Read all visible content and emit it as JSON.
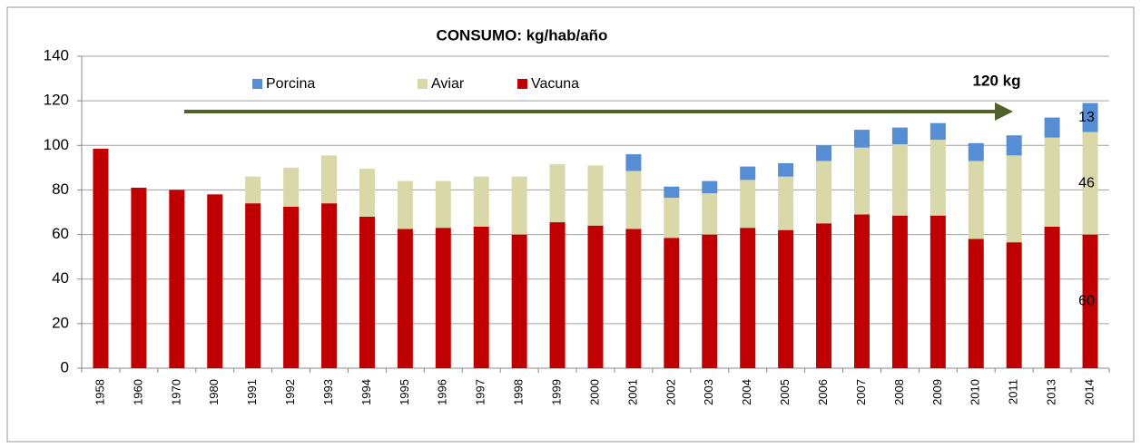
{
  "chart_data": {
    "type": "stacked_bar",
    "title": "CONSUMO: kg/hab/año",
    "annotation": "120 kg",
    "categories": [
      "1958",
      "1960",
      "1970",
      "1980",
      "1991",
      "1992",
      "1993",
      "1994",
      "1995",
      "1996",
      "1997",
      "1998",
      "1999",
      "2000",
      "2001",
      "2002",
      "2003",
      "2004",
      "2005",
      "2006",
      "2007",
      "2008",
      "2009",
      "2010",
      "2011",
      "2013",
      "2014"
    ],
    "series": [
      {
        "name": "Vacuna",
        "color": "#c00000",
        "values": [
          98.5,
          81,
          80,
          78,
          74,
          72.5,
          74,
          68,
          62.5,
          63,
          63.5,
          60,
          65.5,
          64,
          62.5,
          58.5,
          60,
          63,
          62,
          65,
          69,
          68.5,
          68.5,
          58,
          56.5,
          63.5,
          60
        ]
      },
      {
        "name": "Aviar",
        "color": "#d8d8a8",
        "values": [
          0,
          0,
          0,
          0,
          12,
          17.5,
          21.5,
          21.5,
          21.5,
          21,
          22.5,
          26,
          26,
          27,
          26,
          18,
          18.5,
          21.5,
          24,
          28,
          30,
          32,
          34,
          35,
          39,
          40,
          46
        ]
      },
      {
        "name": "Porcina",
        "color": "#558ed5",
        "values": [
          0,
          0,
          0,
          0,
          0,
          0,
          0,
          0,
          0,
          0,
          0,
          0,
          0,
          0,
          7.5,
          5,
          5.5,
          6,
          6,
          7,
          8,
          7.5,
          7.5,
          8,
          9,
          9,
          13
        ]
      }
    ],
    "data_labels": "last",
    "ylim": [
      0,
      140
    ],
    "yticks": [
      0,
      20,
      40,
      60,
      80,
      100,
      120,
      140
    ],
    "grid": true
  }
}
